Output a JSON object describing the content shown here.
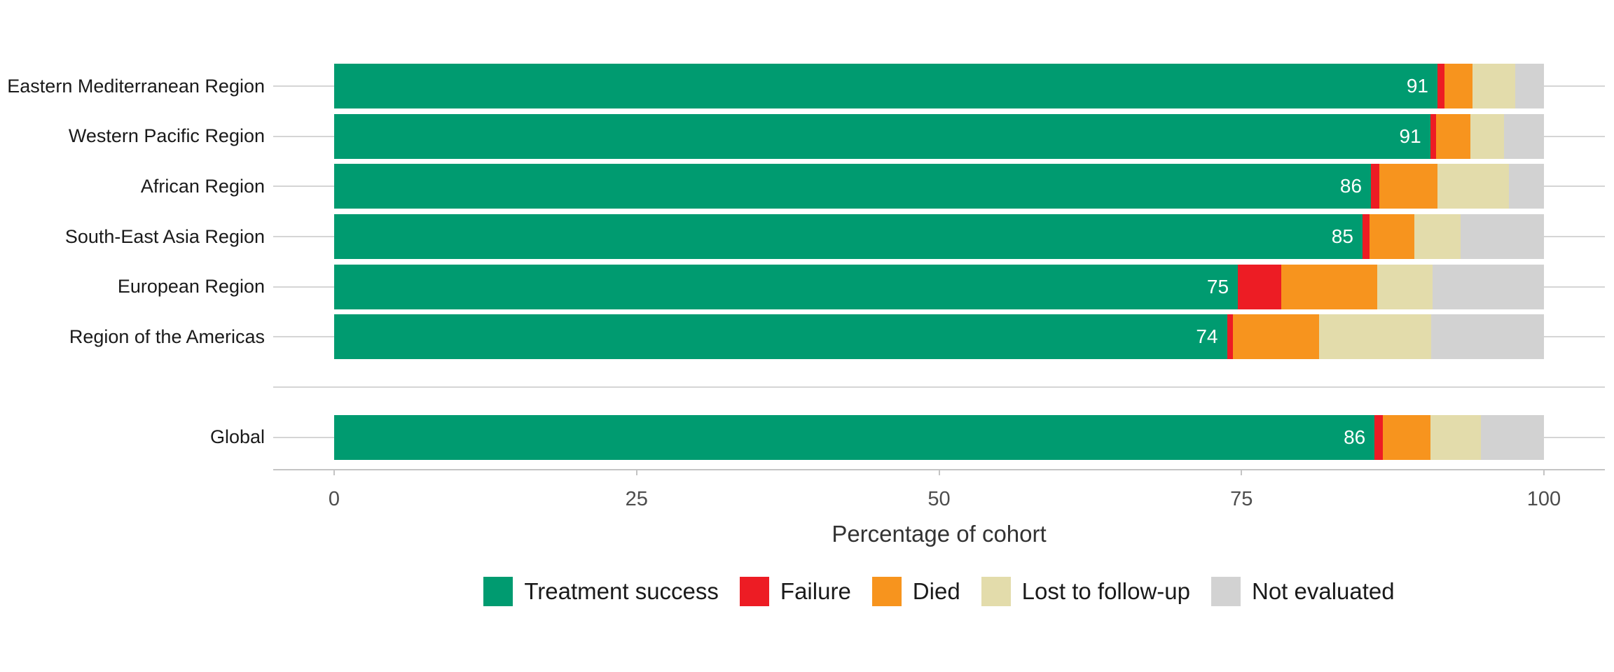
{
  "chart_data": {
    "type": "bar",
    "variant": "horizontal-stacked",
    "xlabel": "Percentage of cohort",
    "x_ticks": [
      "0",
      "25",
      "50",
      "75",
      "100"
    ],
    "x_range": [
      0,
      100
    ],
    "grid": "row-reference-lines",
    "legend_position": "bottom-center",
    "legend": [
      {
        "name": "Treatment success",
        "color": "#009b70"
      },
      {
        "name": "Failure",
        "color": "#ed1c24"
      },
      {
        "name": "Died",
        "color": "#f7941e"
      },
      {
        "name": "Lost to follow-up",
        "color": "#e3dcab"
      },
      {
        "name": "Not evaluated",
        "color": "#d2d2d2"
      }
    ],
    "segment_keys": [
      "treatment-success",
      "failure",
      "died",
      "lost-to-follow-up",
      "not-evaluated"
    ],
    "rows": [
      {
        "label": "Eastern Mediterranean Region",
        "value_label": "91",
        "values": [
          91.2,
          0.6,
          2.3,
          3.5,
          2.4
        ]
      },
      {
        "label": "Western Pacific Region",
        "value_label": "91",
        "values": [
          90.6,
          0.5,
          2.8,
          2.8,
          3.3
        ]
      },
      {
        "label": "African Region",
        "value_label": "86",
        "values": [
          85.7,
          0.7,
          4.8,
          5.9,
          2.9
        ]
      },
      {
        "label": "South-East Asia Region",
        "value_label": "85",
        "values": [
          85.0,
          0.6,
          3.7,
          3.8,
          6.9
        ]
      },
      {
        "label": "European Region",
        "value_label": "75",
        "values": [
          74.7,
          3.6,
          7.9,
          4.6,
          9.2
        ]
      },
      {
        "label": "Region of the Americas",
        "value_label": "74",
        "values": [
          73.8,
          0.5,
          7.1,
          9.3,
          9.3
        ]
      },
      {
        "label": "Global",
        "value_label": "86",
        "values": [
          86.0,
          0.7,
          3.9,
          4.2,
          5.2
        ],
        "separated": true
      }
    ]
  },
  "colors": {
    "row_line": "#d5d5d5",
    "axis_line": "#c4c4c4",
    "tick_label": "#4d4d4d",
    "region_label": "#1a1a1a",
    "bar_value_label": "#ffffff",
    "background": "#ffffff"
  }
}
